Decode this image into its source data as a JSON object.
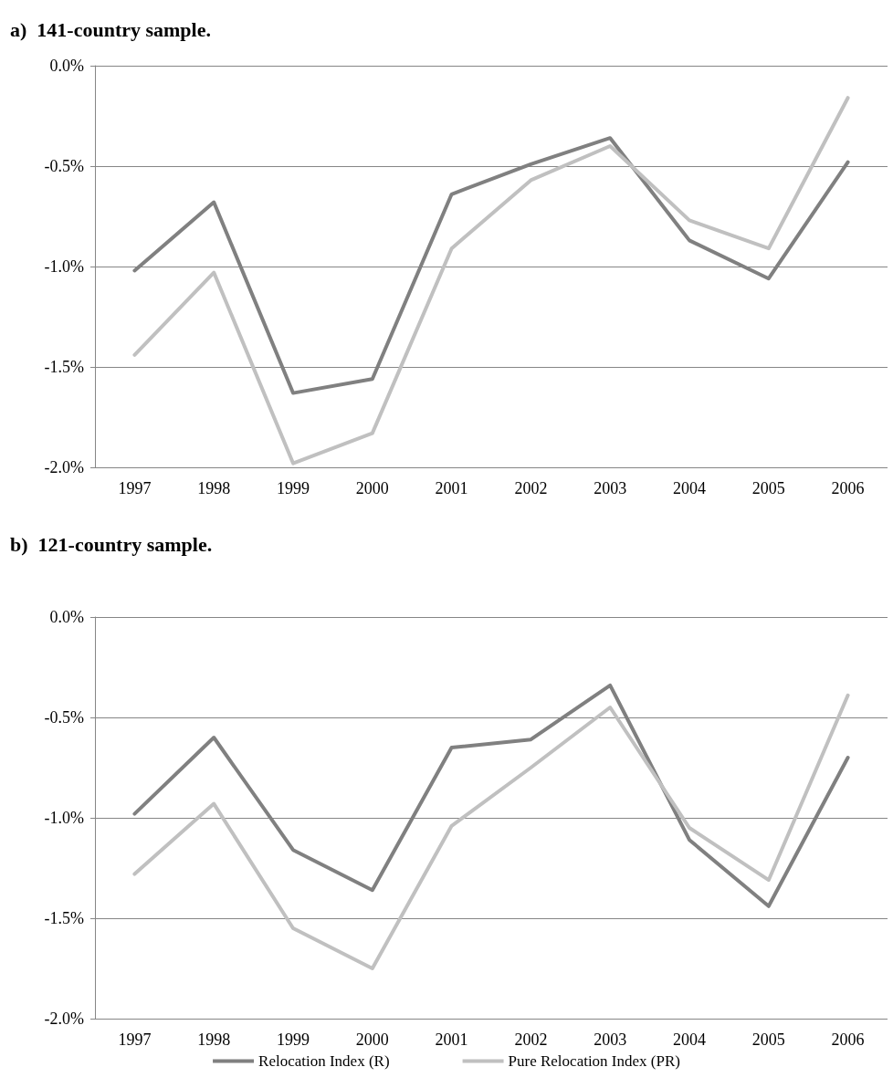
{
  "chart_data": [
    {
      "type": "line",
      "title": "a)  141-country sample.",
      "categories": [
        "1997",
        "1998",
        "1999",
        "2000",
        "2001",
        "2002",
        "2003",
        "2004",
        "2005",
        "2006"
      ],
      "ylim": [
        -2.0,
        0.0
      ],
      "yticks": [
        {
          "value": -2.0,
          "label": "-2.0%"
        },
        {
          "value": -1.5,
          "label": "-1.5%"
        },
        {
          "value": -1.0,
          "label": "-1.0%"
        },
        {
          "value": -0.5,
          "label": "-0.5%"
        },
        {
          "value": 0.0,
          "label": "0.0%"
        }
      ],
      "grid": "y",
      "legend": false,
      "marker": "none",
      "line_style": "solid",
      "series": [
        {
          "color": "#808080",
          "values": [
            -1.02,
            -0.68,
            -1.63,
            -1.56,
            -0.64,
            -0.49,
            -0.36,
            -0.87,
            -1.06,
            -0.48
          ]
        },
        {
          "color": "#c0c0c0",
          "values": [
            -1.44,
            -1.03,
            -1.98,
            -1.83,
            -0.91,
            -0.57,
            -0.4,
            -0.77,
            -0.91,
            -0.16
          ]
        }
      ]
    },
    {
      "type": "line",
      "title": "b)  121-country sample.",
      "categories": [
        "1997",
        "1998",
        "1999",
        "2000",
        "2001",
        "2002",
        "2003",
        "2004",
        "2005",
        "2006"
      ],
      "ylim": [
        -2.0,
        0.0
      ],
      "yticks": [
        {
          "value": -2.0,
          "label": "-2.0%"
        },
        {
          "value": -1.5,
          "label": "-1.5%"
        },
        {
          "value": -1.0,
          "label": "-1.0%"
        },
        {
          "value": -0.5,
          "label": "-0.5%"
        },
        {
          "value": 0.0,
          "label": "0.0%"
        }
      ],
      "grid": "y",
      "legend": "bottom",
      "marker": "none",
      "line_style": "solid",
      "series": [
        {
          "name": "Relocation Index (R)",
          "color": "#808080",
          "values": [
            -0.98,
            -0.6,
            -1.16,
            -1.36,
            -0.65,
            -0.61,
            -0.34,
            -1.11,
            -1.44,
            -0.7
          ]
        },
        {
          "name": "Pure Relocation Index (PR)",
          "color": "#c0c0c0",
          "values": [
            -1.28,
            -0.93,
            -1.55,
            -1.75,
            -1.04,
            -0.75,
            -0.45,
            -1.05,
            -1.31,
            -0.39
          ]
        }
      ]
    }
  ]
}
